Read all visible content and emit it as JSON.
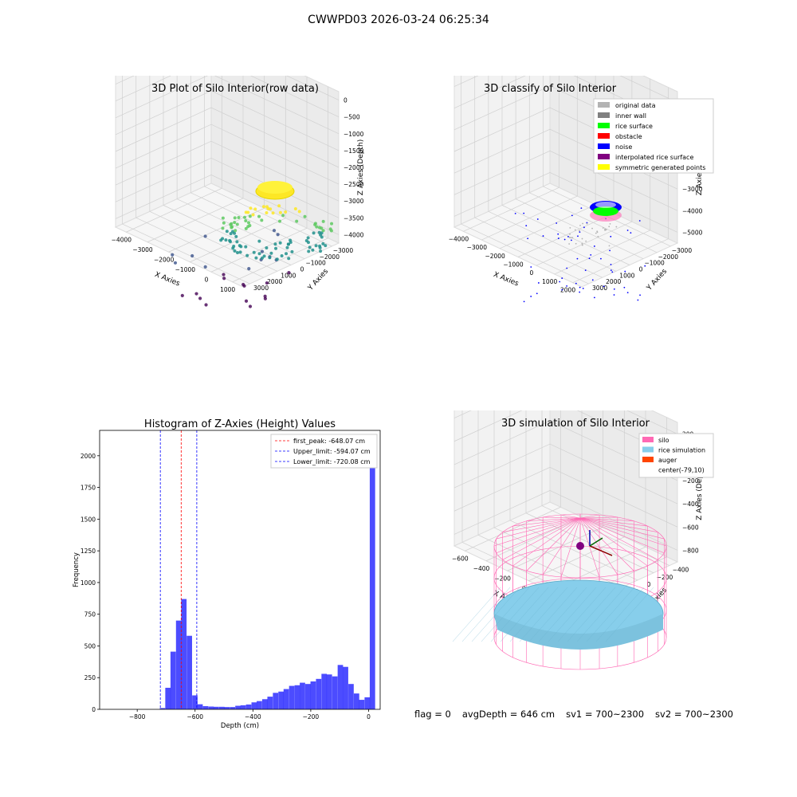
{
  "figure_title": "CWWPD03 2026-03-24 06:25:34",
  "chart_data": [
    {
      "id": "raw",
      "type": "scatter",
      "title": "3D Plot of Silo Interior(row data)",
      "xlabel": "X Axies",
      "ylabel": "Y Axies",
      "zlabel": "Z Axies (Depth)",
      "x_ticks": [
        "−4000",
        "−3000",
        "−2000",
        "−1000",
        "0",
        "1000"
      ],
      "y_ticks": [
        "−3000",
        "−2000",
        "−1000",
        "0",
        "1000",
        "2000",
        "3000"
      ],
      "z_ticks": [
        "0",
        "−500",
        "−1000",
        "−1500",
        "−2000",
        "−2500",
        "−3000",
        "−3500",
        "−4000"
      ],
      "colormap": [
        "#440154",
        "#3b528b",
        "#21918c",
        "#5ec962",
        "#fde725"
      ]
    },
    {
      "id": "classify",
      "type": "scatter",
      "title": "3D classify of Silo Interior",
      "xlabel": "X Axies",
      "ylabel": "Y Axies",
      "zlabel": "Z Axies (Depth)",
      "x_ticks": [
        "−4000",
        "−3000",
        "−2000",
        "−1000",
        "0",
        "1000",
        "2000"
      ],
      "y_ticks": [
        "−3000",
        "−2000",
        "−1000",
        "0",
        "1000",
        "2000",
        "3000"
      ],
      "z_ticks": [
        "1000",
        "0",
        "−1000",
        "−2000",
        "−3000",
        "−4000",
        "−5000"
      ],
      "legend": [
        {
          "label": "original data",
          "color": "#b3b3b3"
        },
        {
          "label": "inner wall",
          "color": "#808080"
        },
        {
          "label": "rice surface",
          "color": "#00ff00"
        },
        {
          "label": "obstacle",
          "color": "#ff0000"
        },
        {
          "label": "noise",
          "color": "#0000ff"
        },
        {
          "label": "interpolated rice surface",
          "color": "#800080"
        },
        {
          "label": "symmetric generated points",
          "color": "#ffff00"
        }
      ]
    },
    {
      "id": "histogram",
      "type": "bar",
      "title": "Histogram of Z-Axies (Height) Values",
      "xlabel": "Depth (cm)",
      "ylabel": "Frequency",
      "xlim": [
        -930,
        40
      ],
      "ylim": [
        0,
        2200
      ],
      "x_ticks": [
        -800,
        -600,
        -400,
        -200,
        0
      ],
      "x_tick_labels": [
        "−800",
        "−600",
        "−400",
        "−200",
        "0"
      ],
      "y_ticks": [
        0,
        250,
        500,
        750,
        1000,
        1250,
        1500,
        1750,
        2000
      ],
      "bar_color": "#0000ff",
      "bin_width": 18.6,
      "bins": [
        [
          -722,
          10
        ],
        [
          -703,
          170
        ],
        [
          -685,
          455
        ],
        [
          -666,
          700
        ],
        [
          -648,
          870
        ],
        [
          -629,
          580
        ],
        [
          -610,
          110
        ],
        [
          -592,
          40
        ],
        [
          -573,
          25
        ],
        [
          -554,
          22
        ],
        [
          -536,
          20
        ],
        [
          -517,
          20
        ],
        [
          -499,
          18
        ],
        [
          -480,
          18
        ],
        [
          -461,
          28
        ],
        [
          -443,
          32
        ],
        [
          -424,
          38
        ],
        [
          -405,
          55
        ],
        [
          -387,
          65
        ],
        [
          -368,
          80
        ],
        [
          -350,
          100
        ],
        [
          -331,
          130
        ],
        [
          -312,
          140
        ],
        [
          -294,
          160
        ],
        [
          -275,
          185
        ],
        [
          -256,
          190
        ],
        [
          -238,
          210
        ],
        [
          -219,
          200
        ],
        [
          -201,
          220
        ],
        [
          -182,
          240
        ],
        [
          -163,
          280
        ],
        [
          -145,
          275
        ],
        [
          -126,
          260
        ],
        [
          -107,
          350
        ],
        [
          -89,
          335
        ],
        [
          -70,
          200
        ],
        [
          -51,
          125
        ],
        [
          -33,
          75
        ],
        [
          -14,
          95
        ],
        [
          4,
          2090
        ]
      ],
      "vlines": [
        {
          "label": "first_peak: -648.07 cm",
          "x": -648.07,
          "color": "#ff0000"
        },
        {
          "label": "Upper_limit: -594.07 cm",
          "x": -594.07,
          "color": "#0000ff"
        },
        {
          "label": "Lower_limit: -720.08 cm",
          "x": -720.08,
          "color": "#0000ff"
        }
      ]
    },
    {
      "id": "simulation",
      "type": "surface",
      "title": "3D simulation of Silo Interior",
      "xlabel": "X Axies",
      "ylabel": "Y Axies",
      "zlabel": "Z Axies (Depth)",
      "x_ticks": [
        "−600",
        "−400",
        "−200",
        "0",
        "200",
        "400"
      ],
      "y_ticks": [
        "−400",
        "−200",
        "0",
        "200",
        "400",
        "600"
      ],
      "z_ticks": [
        "200",
        "0",
        "−200",
        "−400",
        "−600",
        "−800"
      ],
      "legend": [
        {
          "label": "silo",
          "color": "#ff69b4"
        },
        {
          "label": "rice simulation",
          "color": "#87ceeb"
        },
        {
          "label": "auger",
          "color": "#ff4500"
        },
        {
          "label": "center(-79,10)",
          "color": ""
        }
      ]
    }
  ],
  "footer": {
    "flag": "flag = 0",
    "avg_depth": "avgDepth = 646 cm",
    "sv1": "sv1 = 700~2300",
    "sv2": "sv2 = 700~2300"
  }
}
